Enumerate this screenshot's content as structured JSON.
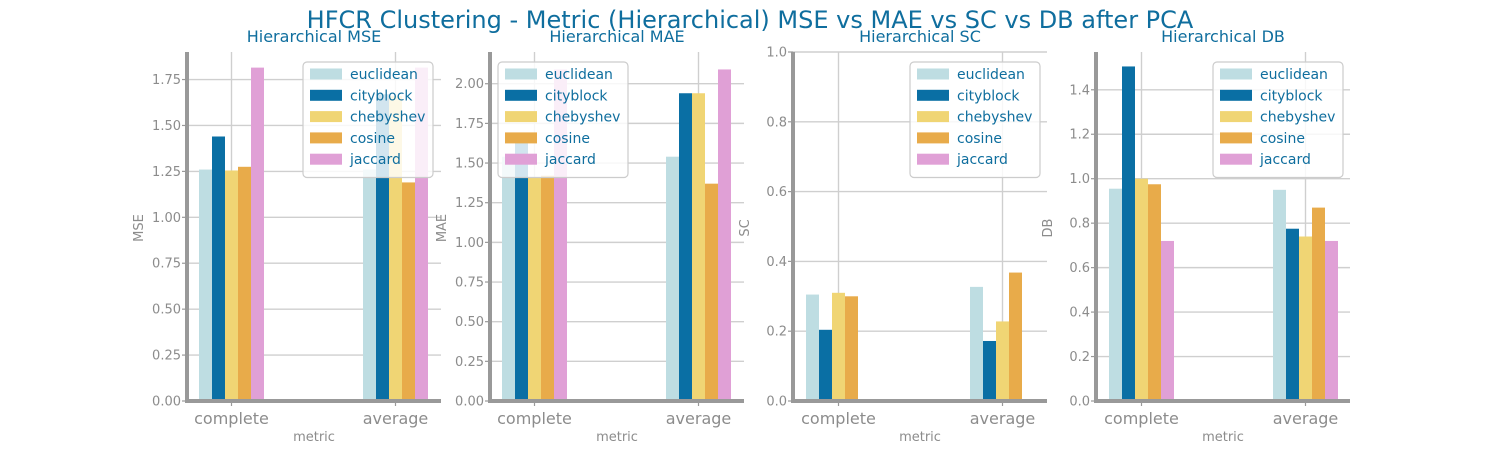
{
  "title": "HFCR Clustering - Metric (Hierarchical) MSE vs MAE vs SC vs DB after PCA",
  "colors": {
    "euclidean": "#bedde2",
    "cityblock": "#0a6fa4",
    "chebyshev": "#f0d574",
    "cosine": "#e8ab4a",
    "jaccard": "#e0a0d6"
  },
  "chart_data": [
    {
      "type": "bar",
      "title": "Hierarchical MSE",
      "xlabel": "metric",
      "ylabel": "MSE",
      "categories": [
        "complete",
        "average"
      ],
      "ylim": [
        0,
        1.9
      ],
      "yticks": [
        "0.00",
        "0.25",
        "0.50",
        "0.75",
        "1.00",
        "1.25",
        "1.50",
        "1.75"
      ],
      "legend": "top-right",
      "series": [
        {
          "name": "euclidean",
          "values": [
            1.26,
            1.26
          ]
        },
        {
          "name": "cityblock",
          "values": [
            1.44,
            1.67
          ]
        },
        {
          "name": "chebyshev",
          "values": [
            1.255,
            1.66
          ]
        },
        {
          "name": "cosine",
          "values": [
            1.275,
            1.19
          ]
        },
        {
          "name": "jaccard",
          "values": [
            1.815,
            1.815
          ]
        }
      ]
    },
    {
      "type": "bar",
      "title": "Hierarchical MAE",
      "xlabel": "metric",
      "ylabel": "MAE",
      "categories": [
        "complete",
        "average"
      ],
      "ylim": [
        0,
        2.2
      ],
      "yticks": [
        "0.00",
        "0.25",
        "0.50",
        "0.75",
        "1.00",
        "1.25",
        "1.50",
        "1.75",
        "2.00"
      ],
      "legend": "top-left",
      "series": [
        {
          "name": "euclidean",
          "values": [
            1.54,
            1.54
          ]
        },
        {
          "name": "cityblock",
          "values": [
            1.64,
            1.94
          ]
        },
        {
          "name": "chebyshev",
          "values": [
            1.41,
            1.94
          ]
        },
        {
          "name": "cosine",
          "values": [
            1.42,
            1.37
          ]
        },
        {
          "name": "jaccard",
          "values": [
            2.09,
            2.09
          ]
        }
      ]
    },
    {
      "type": "bar",
      "title": "Hierarchical SC",
      "xlabel": "metric",
      "ylabel": "SC",
      "categories": [
        "complete",
        "average"
      ],
      "ylim": [
        0,
        1.0
      ],
      "yticks": [
        "0.0",
        "0.2",
        "0.4",
        "0.6",
        "0.8",
        "1.0"
      ],
      "legend": "top-right",
      "series": [
        {
          "name": "euclidean",
          "values": [
            0.305,
            0.327
          ]
        },
        {
          "name": "cityblock",
          "values": [
            0.204,
            0.172
          ]
        },
        {
          "name": "chebyshev",
          "values": [
            0.31,
            0.228
          ]
        },
        {
          "name": "cosine",
          "values": [
            0.3,
            0.368
          ]
        },
        {
          "name": "jaccard",
          "values": [
            0,
            0
          ]
        }
      ]
    },
    {
      "type": "bar",
      "title": "Hierarchical DB",
      "xlabel": "metric",
      "ylabel": "DB",
      "categories": [
        "complete",
        "average"
      ],
      "ylim": [
        0,
        1.57
      ],
      "yticks": [
        "0.0",
        "0.2",
        "0.4",
        "0.6",
        "0.8",
        "1.0",
        "1.2",
        "1.4"
      ],
      "legend": "top-right",
      "series": [
        {
          "name": "euclidean",
          "values": [
            0.955,
            0.95
          ]
        },
        {
          "name": "cityblock",
          "values": [
            1.505,
            0.775
          ]
        },
        {
          "name": "chebyshev",
          "values": [
            1.0,
            0.74
          ]
        },
        {
          "name": "cosine",
          "values": [
            0.975,
            0.87
          ]
        },
        {
          "name": "jaccard",
          "values": [
            0.72,
            0.72
          ]
        }
      ]
    }
  ]
}
